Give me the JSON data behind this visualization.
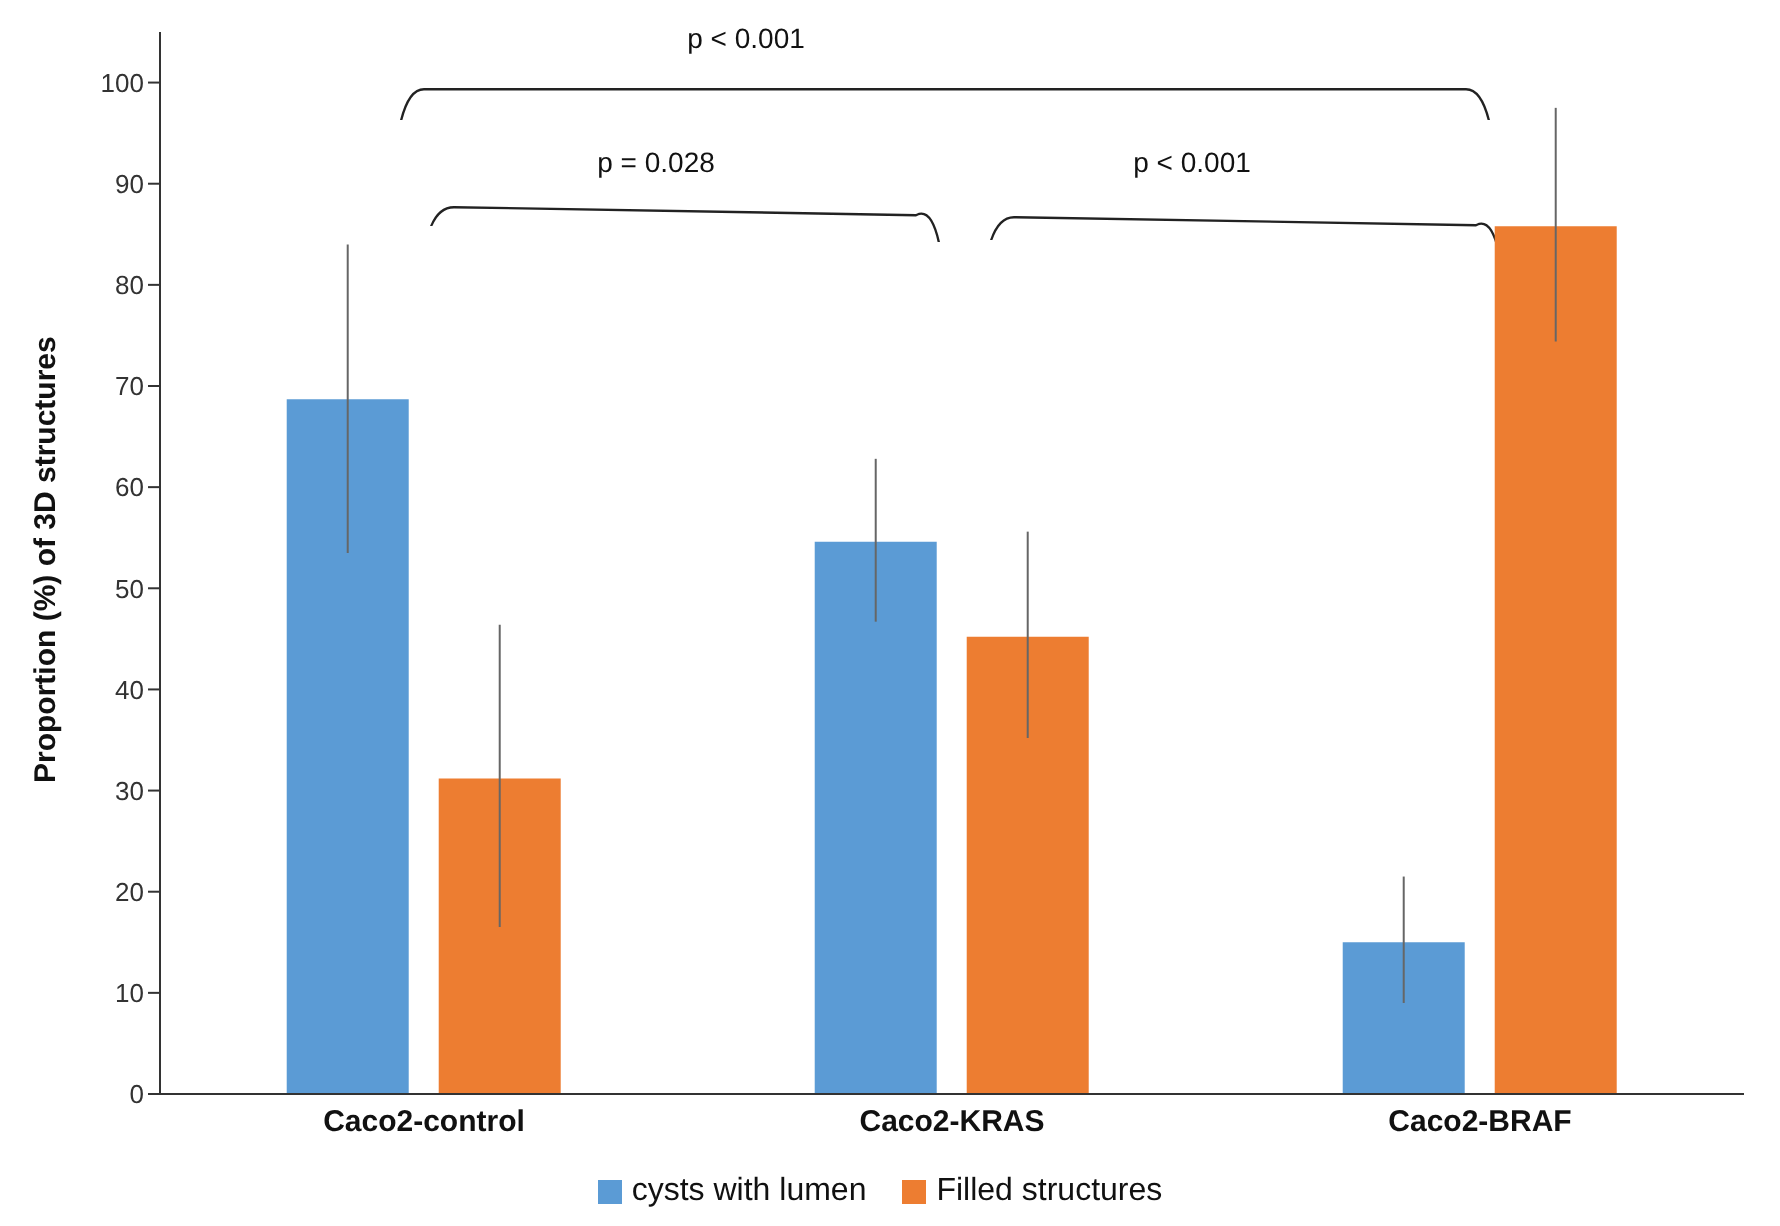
{
  "chart_data": {
    "type": "bar",
    "ylabel": "Proportion (%) of 3D structures",
    "categories": [
      "Caco2-control",
      "Caco2-KRAS",
      "Caco2-BRAF"
    ],
    "series": [
      {
        "name": "cysts with lumen",
        "color": "#5b9bd5",
        "values": [
          68.7,
          54.6,
          15.0
        ],
        "errors": [
          [
            53.5,
            84.0
          ],
          [
            46.7,
            62.8
          ],
          [
            9.0,
            21.5
          ]
        ]
      },
      {
        "name": "Filled structures",
        "color": "#ed7d31",
        "values": [
          31.2,
          45.2,
          85.8
        ],
        "errors": [
          [
            16.5,
            46.4
          ],
          [
            35.2,
            55.6
          ],
          [
            74.4,
            97.5
          ]
        ]
      }
    ],
    "ylim": [
      0,
      105
    ],
    "yticks": [
      0,
      10,
      20,
      30,
      40,
      50,
      60,
      70,
      80,
      90,
      100
    ],
    "grid": false,
    "legend": "bottom",
    "annotations": [
      "p < 0.001",
      "p = 0.028",
      "p < 0.001"
    ]
  }
}
